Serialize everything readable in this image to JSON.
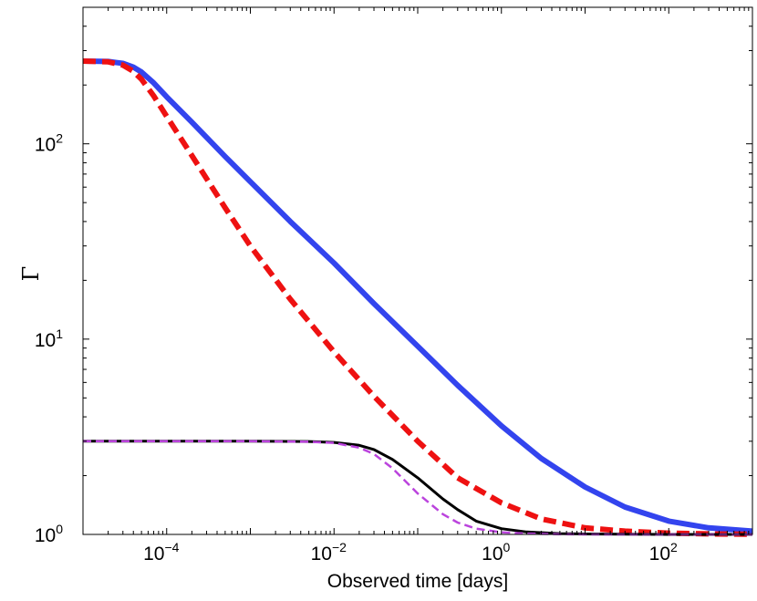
{
  "chart_data": {
    "type": "line",
    "title": "",
    "xlabel": "Observed time [days]",
    "ylabel": "Γ",
    "xscale": "log",
    "yscale": "log",
    "xlim": [
      1e-05,
      1000
    ],
    "ylim": [
      1,
      500
    ],
    "grid": false,
    "legend": "none",
    "x_ticks": [
      {
        "value": 0.0001,
        "base": "10",
        "exp": "−4"
      },
      {
        "value": 0.01,
        "base": "10",
        "exp": "−2"
      },
      {
        "value": 1,
        "base": "10",
        "exp": "0"
      },
      {
        "value": 100,
        "base": "10",
        "exp": "2"
      }
    ],
    "y_ticks": [
      {
        "value": 1,
        "base": "10",
        "exp": "0"
      },
      {
        "value": 10,
        "base": "10",
        "exp": "1"
      },
      {
        "value": 100,
        "base": "10",
        "exp": "2"
      }
    ],
    "series": [
      {
        "name": "blue-solid",
        "color": "#3344ee",
        "dash": "solid",
        "x": [
          1e-05,
          2e-05,
          3e-05,
          4e-05,
          5e-05,
          7e-05,
          0.0001,
          0.0002,
          0.0005,
          0.001,
          0.003,
          0.01,
          0.03,
          0.1,
          0.3,
          1,
          3,
          10,
          30,
          100,
          300,
          1000
        ],
        "y": [
          265,
          264,
          258,
          247,
          233,
          205,
          174,
          129,
          86,
          64,
          40,
          24.5,
          15.2,
          9.2,
          5.8,
          3.6,
          2.45,
          1.75,
          1.38,
          1.17,
          1.08,
          1.04
        ]
      },
      {
        "name": "red-dashed",
        "color": "#ee1111",
        "dash": "dashed",
        "x": [
          1e-05,
          2e-05,
          3e-05,
          4e-05,
          5e-05,
          7e-05,
          0.0001,
          0.0002,
          0.0005,
          0.001,
          0.003,
          0.01,
          0.03,
          0.1,
          0.3,
          1,
          3,
          10,
          30,
          100,
          300,
          1000
        ],
        "y": [
          265,
          263,
          253,
          235,
          214,
          176,
          138,
          87,
          47,
          30,
          16,
          8.6,
          5.1,
          3.0,
          1.95,
          1.45,
          1.2,
          1.08,
          1.04,
          1.015,
          1.006,
          1.002
        ]
      },
      {
        "name": "black-solid",
        "color": "#000000",
        "dash": "solid",
        "x": [
          1e-05,
          0.0001,
          0.001,
          0.005,
          0.01,
          0.02,
          0.03,
          0.05,
          0.1,
          0.2,
          0.3,
          0.5,
          1,
          2,
          5,
          10,
          100,
          1000
        ],
        "y": [
          3.0,
          3.0,
          3.0,
          2.99,
          2.96,
          2.86,
          2.72,
          2.42,
          1.95,
          1.52,
          1.34,
          1.17,
          1.07,
          1.03,
          1.01,
          1.005,
          1.0,
          1.0
        ]
      },
      {
        "name": "magenta-dashed",
        "color": "#bb44dd",
        "dash": "dashed",
        "x": [
          1e-05,
          0.0001,
          0.001,
          0.005,
          0.01,
          0.02,
          0.03,
          0.05,
          0.1,
          0.2,
          0.3,
          0.5,
          1,
          2,
          5,
          10,
          100,
          1000
        ],
        "y": [
          3.0,
          3.0,
          3.0,
          2.98,
          2.94,
          2.78,
          2.58,
          2.18,
          1.62,
          1.27,
          1.15,
          1.07,
          1.025,
          1.01,
          1.003,
          1.0,
          1.0,
          1.0
        ]
      }
    ]
  }
}
